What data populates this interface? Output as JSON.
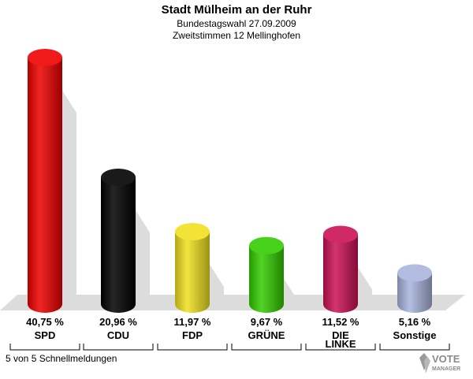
{
  "header": {
    "title": "Stadt Mülheim an der Ruhr",
    "subtitle": "Bundestagswahl 27.09.2009",
    "subtitle2": "Zweitstimmen 12 Mellinghofen"
  },
  "footer": {
    "text": "5 von 5 Schnellmeldungen"
  },
  "logo": {
    "line1": "VOTE",
    "line2": "MANAGER"
  },
  "chart_data": {
    "type": "bar",
    "title": "Stadt Mülheim an der Ruhr",
    "categories": [
      "SPD",
      "CDU",
      "FDP",
      "GRÜNE",
      "DIE LINKE",
      "Sonstige"
    ],
    "category_lines": [
      [
        "SPD"
      ],
      [
        "CDU"
      ],
      [
        "FDP"
      ],
      [
        "GRÜNE"
      ],
      [
        "DIE",
        "LINKE"
      ],
      [
        "Sonstige"
      ]
    ],
    "values": [
      40.75,
      20.96,
      11.97,
      9.67,
      11.52,
      5.16
    ],
    "value_labels": [
      "40,75 %",
      "20,96 %",
      "11,97 %",
      "9,67 %",
      "11,52 %",
      "5,16 %"
    ],
    "colors": [
      "#ee0000",
      "#000000",
      "#f0e020",
      "#33cc00",
      "#cc1155",
      "#a8b4dc"
    ],
    "ylim": [
      0,
      45
    ],
    "grid": false,
    "legend": "none"
  }
}
